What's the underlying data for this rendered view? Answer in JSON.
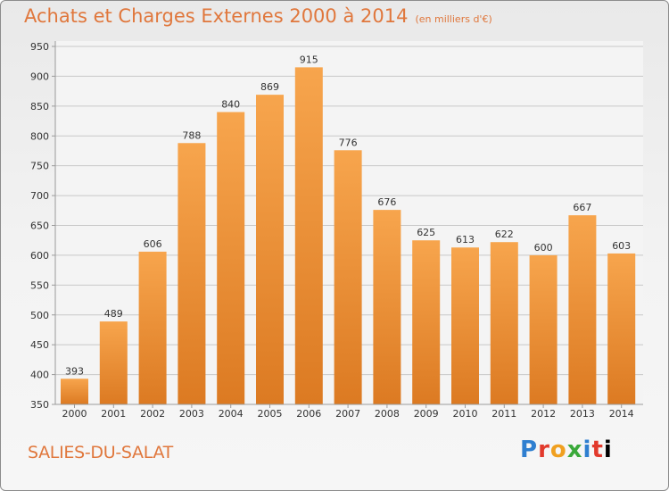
{
  "header": {
    "title": "Achats et Charges Externes 2000 à 2014",
    "subtitle": "(en milliers d'€)"
  },
  "footer": {
    "commune": "SALIES-DU-SALAT",
    "logo_letters": [
      "P",
      "r",
      "o",
      "x",
      "i",
      "t",
      "i"
    ]
  },
  "colors": {
    "bar_light": "#f7a54d",
    "bar_dark": "#dc7a22",
    "title": "#e0773c",
    "grid": "#c8c8c8",
    "text": "#333333"
  },
  "chart_data": {
    "type": "bar",
    "categories": [
      "2000",
      "2001",
      "2002",
      "2003",
      "2004",
      "2005",
      "2006",
      "2007",
      "2008",
      "2009",
      "2010",
      "2011",
      "2012",
      "2013",
      "2014"
    ],
    "values": [
      393,
      489,
      606,
      788,
      840,
      869,
      915,
      776,
      676,
      625,
      613,
      622,
      600,
      667,
      603
    ],
    "title": "Achats et Charges Externes 2000 à 2014",
    "subtitle": "(en milliers d'€)",
    "xlabel": "",
    "ylabel": "",
    "ylim": [
      350,
      950
    ],
    "yticks": [
      350,
      400,
      450,
      500,
      550,
      600,
      650,
      700,
      750,
      800,
      850,
      900,
      950
    ],
    "grid": true,
    "legend": "none"
  }
}
